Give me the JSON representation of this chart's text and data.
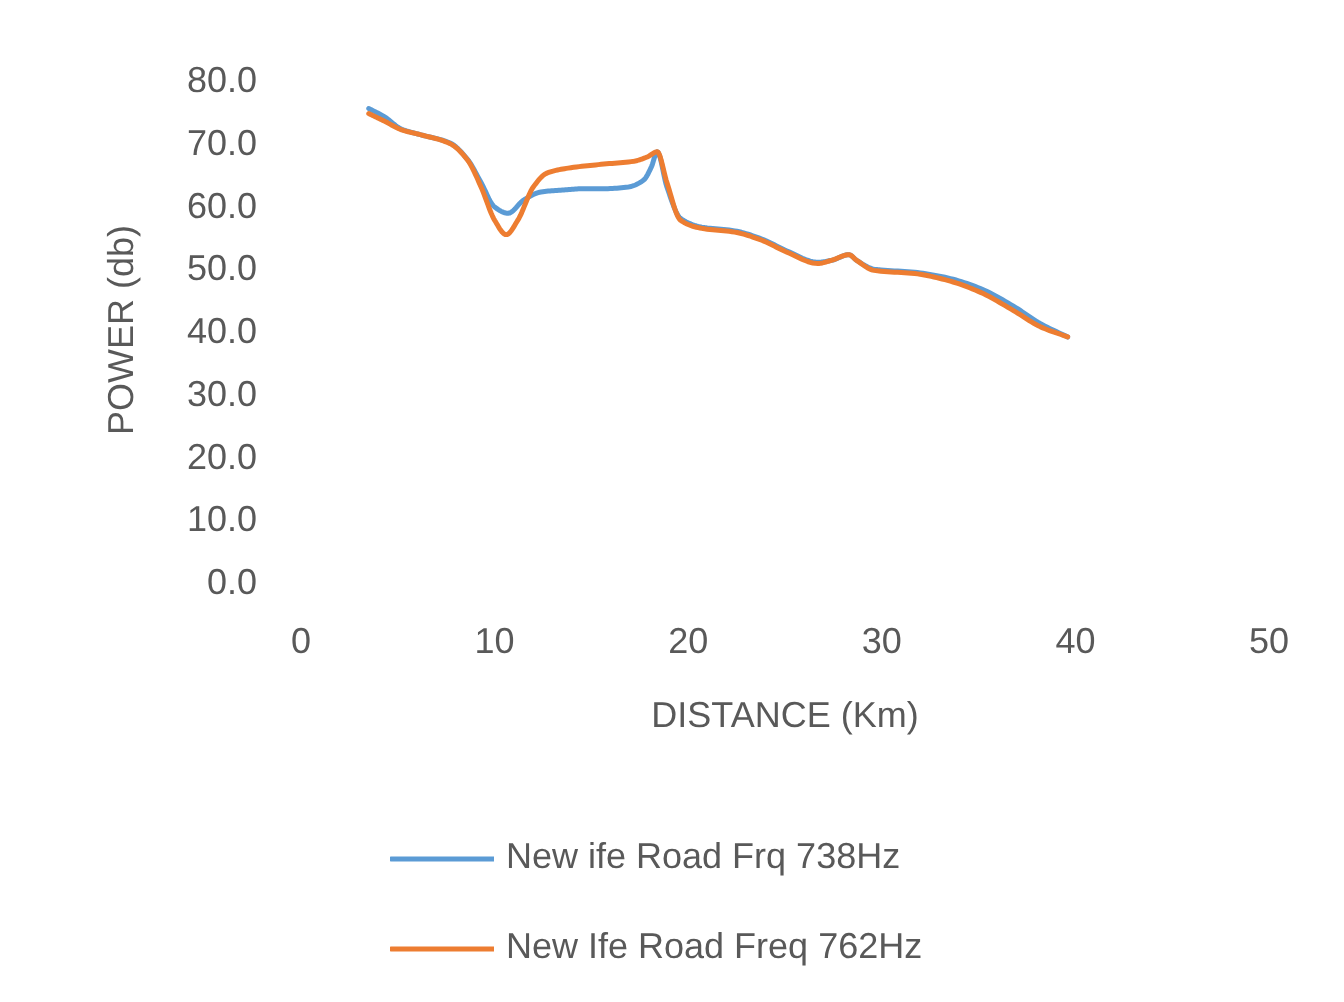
{
  "chart_data": {
    "type": "line",
    "xlabel": "DISTANCE (Km)",
    "ylabel": "POWER (db)",
    "xlim": [
      0,
      50
    ],
    "xticks": [
      0,
      10,
      20,
      30,
      40,
      50
    ],
    "ylim": [
      0,
      80
    ],
    "yticks": [
      {
        "value": 0,
        "label": "0.0"
      },
      {
        "value": 10,
        "label": "10.0"
      },
      {
        "value": 20,
        "label": "20.0"
      },
      {
        "value": 30,
        "label": "30.0"
      },
      {
        "value": 40,
        "label": "40.0"
      },
      {
        "value": 50,
        "label": "50.0"
      },
      {
        "value": 60,
        "label": "60.0"
      },
      {
        "value": 70,
        "label": "70.0"
      },
      {
        "value": 80,
        "label": "80.0"
      }
    ],
    "legend": "bottom",
    "series": [
      {
        "name": "New ife Road Frq 738Hz",
        "color": "#5b9bd5",
        "x": [
          3.5,
          4.3,
          5.2,
          6.2,
          7.7,
          8.6,
          9.3,
          10.0,
          10.7,
          11.5,
          12.4,
          13.5,
          14.5,
          15.5,
          16.9,
          17.7,
          18.1,
          18.4,
          18.9,
          19.6,
          20.7,
          22.4,
          23.8,
          25.1,
          26.7,
          27.4,
          28.3,
          28.7,
          29.6,
          31.7,
          33.4,
          35.1,
          36.8,
          38.2,
          39.6
        ],
        "values": [
          75.3,
          74.0,
          72.0,
          71.1,
          69.8,
          67.2,
          63.5,
          59.6,
          58.6,
          60.7,
          62.0,
          62.3,
          62.5,
          62.5,
          62.8,
          63.9,
          66.0,
          68.4,
          62.8,
          57.8,
          56.4,
          55.8,
          54.5,
          52.6,
          50.8,
          51.1,
          52.0,
          51.1,
          49.7,
          49.2,
          48.3,
          46.6,
          43.8,
          41.0,
          38.9
        ]
      },
      {
        "name": "New Ife Road Freq 762Hz",
        "color": "#ed7d31",
        "x": [
          3.5,
          4.3,
          5.2,
          6.2,
          7.7,
          8.6,
          9.3,
          10.0,
          10.6,
          11.2,
          12.0,
          12.7,
          13.8,
          15.5,
          17.2,
          17.9,
          18.4,
          18.9,
          19.6,
          20.7,
          22.4,
          23.8,
          25.1,
          26.7,
          27.4,
          28.3,
          28.7,
          29.6,
          31.7,
          33.4,
          35.1,
          36.8,
          38.2,
          39.6
        ],
        "values": [
          74.5,
          73.3,
          71.9,
          71.1,
          69.7,
          67.1,
          62.8,
          57.5,
          55.2,
          57.5,
          62.8,
          65.0,
          65.8,
          66.4,
          66.9,
          67.6,
          68.4,
          63.5,
          57.5,
          56.2,
          55.6,
          54.3,
          52.4,
          50.6,
          51.1,
          52.0,
          51.1,
          49.5,
          49.0,
          47.9,
          46.0,
          43.1,
          40.5,
          38.9
        ]
      }
    ]
  }
}
